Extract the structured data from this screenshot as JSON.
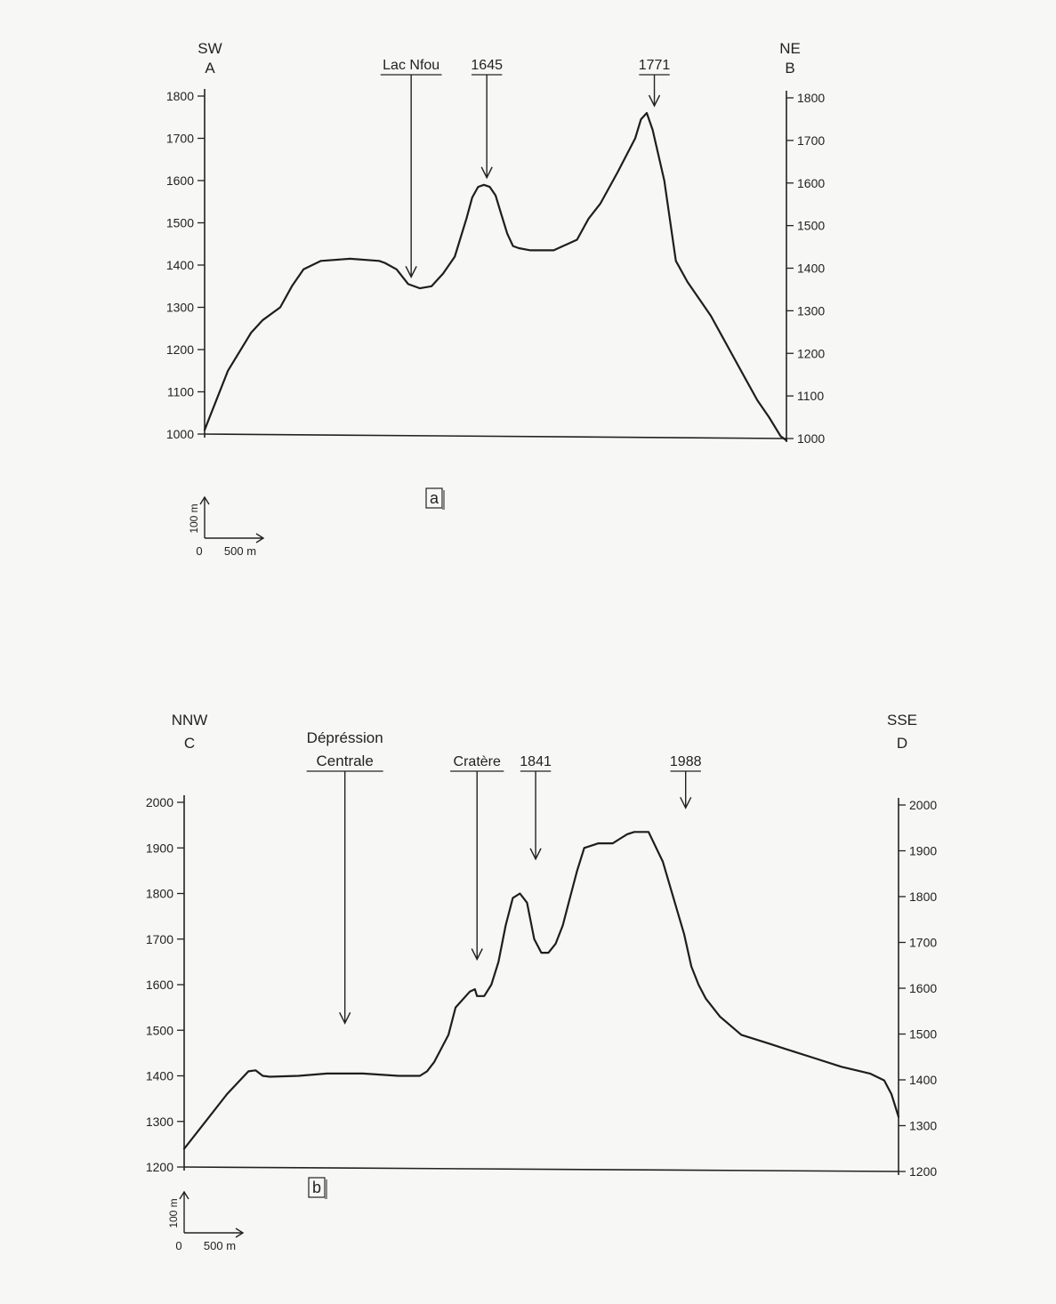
{
  "chart_data": [
    {
      "type": "line",
      "panel_label": "a",
      "left_label": {
        "direction": "SW",
        "point": "A"
      },
      "right_label": {
        "direction": "NE",
        "point": "B"
      },
      "ylim": [
        1000,
        1800
      ],
      "yticks_left": [
        1000,
        1100,
        1200,
        1300,
        1400,
        1500,
        1600,
        1700,
        1800
      ],
      "yticks_right": [
        1000,
        1100,
        1200,
        1300,
        1400,
        1500,
        1600,
        1700,
        1800
      ],
      "scale_bar": {
        "vertical": "100 m",
        "zero": "0",
        "horizontal": "500 m"
      },
      "xlim": [
        0,
        100
      ],
      "series": [
        {
          "x": [
            0,
            4,
            8,
            10,
            13,
            15,
            17,
            20,
            25,
            30,
            31,
            33,
            35,
            37,
            39,
            41,
            43,
            45,
            46,
            47,
            48,
            49,
            50,
            51,
            52,
            53,
            54,
            56,
            60,
            64,
            66,
            68,
            71,
            74,
            75,
            76,
            77,
            79,
            81,
            83,
            85,
            87,
            89,
            91,
            93,
            95,
            97,
            99,
            100
          ],
          "y": [
            1010,
            1150,
            1240,
            1270,
            1300,
            1350,
            1390,
            1410,
            1415,
            1410,
            1405,
            1390,
            1355,
            1345,
            1350,
            1380,
            1420,
            1510,
            1560,
            1585,
            1590,
            1585,
            1565,
            1520,
            1475,
            1445,
            1440,
            1435,
            1435,
            1460,
            1510,
            1545,
            1620,
            1700,
            1745,
            1760,
            1720,
            1600,
            1410,
            1360,
            1320,
            1280,
            1230,
            1180,
            1130,
            1080,
            1040,
            995,
            985
          ]
        }
      ],
      "annotations": [
        {
          "label": "Lac Nfou",
          "x": 35.5,
          "y": 1355
        },
        {
          "label": "1645",
          "x": 48.5,
          "y": 1590
        },
        {
          "label": "1771",
          "x": 77.3,
          "y": 1760
        }
      ]
    },
    {
      "type": "line",
      "panel_label": "b",
      "left_label": {
        "direction": "NNW",
        "point": "C"
      },
      "right_label": {
        "direction": "SSE",
        "point": "D"
      },
      "ylim": [
        1200,
        2000
      ],
      "yticks_left": [
        1200,
        1300,
        1400,
        1500,
        1600,
        1700,
        1800,
        1900,
        2000
      ],
      "yticks_right": [
        1200,
        1300,
        1400,
        1500,
        1600,
        1700,
        1800,
        1900,
        2000
      ],
      "scale_bar": {
        "vertical": "100 m",
        "zero": "0",
        "horizontal": "500 m"
      },
      "xlim": [
        0,
        100
      ],
      "series": [
        {
          "x": [
            0,
            3,
            6,
            9,
            10,
            11,
            12,
            16,
            20,
            25,
            30,
            33,
            34,
            35,
            37,
            38,
            40,
            40.7,
            41,
            42,
            43,
            44,
            45,
            46,
            47,
            48,
            49,
            50,
            51,
            52,
            53,
            54,
            55,
            56,
            58,
            60,
            61,
            62,
            63,
            65,
            67,
            70,
            71,
            72,
            73,
            75,
            78,
            82,
            84,
            88,
            92,
            96,
            98,
            99,
            100
          ],
          "y": [
            1240,
            1300,
            1360,
            1410,
            1412,
            1400,
            1398,
            1400,
            1405,
            1405,
            1400,
            1400,
            1410,
            1430,
            1490,
            1550,
            1585,
            1590,
            1575,
            1575,
            1600,
            1650,
            1730,
            1790,
            1800,
            1780,
            1700,
            1670,
            1670,
            1690,
            1730,
            1790,
            1850,
            1900,
            1910,
            1910,
            1920,
            1930,
            1935,
            1935,
            1870,
            1710,
            1640,
            1600,
            1570,
            1530,
            1490,
            1470,
            1460,
            1440,
            1420,
            1405,
            1390,
            1360,
            1310
          ]
        }
      ],
      "annotations": [
        {
          "label": "Dépréssion Centrale",
          "x": 22.5,
          "y": 1500
        },
        {
          "label": "Cratère",
          "x": 41,
          "y": 1640
        },
        {
          "label": "1841",
          "x": 49.2,
          "y": 1860
        },
        {
          "label": "1988",
          "x": 70.2,
          "y": 1972
        }
      ]
    }
  ]
}
